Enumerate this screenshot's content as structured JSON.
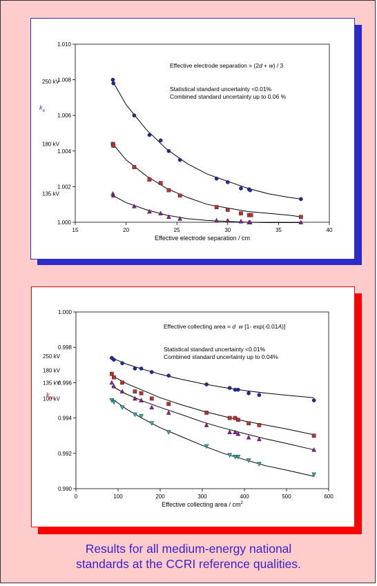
{
  "colors": {
    "background": "#ffcccc",
    "top_accent": "#2b2bcc",
    "bottom_accent": "#ff0000",
    "caption": "#3b22cc",
    "series_250": "#1a2aa0",
    "series_180": "#c03030",
    "series_135": "#8e1e8e",
    "series_100": "#26b0b0"
  },
  "caption": {
    "line1": "Results for all medium-energy national",
    "line2": "standards at the CCRI reference qualities."
  },
  "chart_data": [
    {
      "type": "scatter",
      "title": "",
      "ylabel": "ke",
      "ylabel_main": "k",
      "ylabel_sub": "e",
      "xlabel": "Effective electrode separation / cm",
      "xlim": [
        15,
        40
      ],
      "ylim": [
        1.0,
        1.01
      ],
      "x_ticks": [
        "15",
        "20",
        "25",
        "30",
        "35",
        "40"
      ],
      "x_tick_values": [
        15,
        20,
        25,
        30,
        35,
        40
      ],
      "y_ticks": [
        "1.000",
        "1.002",
        "1.004",
        "1.006",
        "1.008",
        "1.010"
      ],
      "y_tick_values": [
        1.0,
        1.002,
        1.004,
        1.006,
        1.008,
        1.01
      ],
      "annotations": {
        "formula_prefix": "Effective electrode separation = (2",
        "formula_d": "d",
        "formula_mid": " + ",
        "formula_w": "w",
        "formula_suffix": ") / 3",
        "uncert1": "Statistical standard uncertainty <0.01%",
        "uncert2": "Combined standard uncertainty up to 0.06 %"
      },
      "series": [
        {
          "name": "250 kV",
          "marker": "circle",
          "color": "#1a2aa0",
          "x": [
            18.7,
            18.75,
            20.8,
            22.3,
            23.4,
            24.2,
            25.3,
            28.9,
            30.0,
            31.3,
            32.1,
            32.2,
            37.2
          ],
          "y": [
            1.008,
            1.0078,
            1.006,
            1.0049,
            1.0046,
            1.004,
            1.0035,
            1.00245,
            1.00225,
            1.0019,
            1.00185,
            1.0018,
            1.0013
          ],
          "fit_x": [
            18.7,
            20,
            22,
            24,
            26,
            28,
            30,
            32,
            34,
            36,
            37.3
          ],
          "fit_y": [
            1.0079,
            1.0066,
            1.0052,
            1.0041,
            1.0033,
            1.0027,
            1.0023,
            1.0019,
            1.0016,
            1.0014,
            1.0013
          ]
        },
        {
          "name": "180 kV",
          "marker": "square",
          "color": "#c03030",
          "x": [
            18.7,
            18.75,
            20.8,
            22.3,
            23.4,
            24.2,
            25.3,
            28.9,
            30.0,
            31.3,
            32.1,
            32.3,
            37.2
          ],
          "y": [
            1.0044,
            1.0043,
            1.0031,
            1.0024,
            1.0022,
            1.0018,
            1.0015,
            1.00085,
            1.0007,
            1.0005,
            1.0004,
            1.0004,
            1.0003
          ],
          "fit_x": [
            18.7,
            20,
            22,
            24,
            26,
            28,
            30,
            32,
            34,
            36,
            37.3
          ],
          "fit_y": [
            1.0044,
            1.0035,
            1.0026,
            1.0019,
            1.0014,
            1.001,
            1.0008,
            1.0006,
            1.0005,
            1.0004,
            1.0003
          ]
        },
        {
          "name": "135 kV",
          "marker": "triangle",
          "color": "#8e1e8e",
          "x": [
            18.7,
            18.75,
            20.8,
            22.3,
            23.4,
            24.2,
            25.3,
            28.9,
            30.0,
            31.3,
            32.1,
            32.2,
            37.2
          ],
          "y": [
            1.0016,
            1.0015,
            1.0009,
            1.0006,
            1.0005,
            1.0003,
            1.0002,
            1.0001,
            1.0001,
            1.00005,
            1.0,
            1.0,
            1.0
          ],
          "fit_x": [
            18.7,
            20,
            22,
            24,
            26,
            28,
            30,
            32,
            34,
            36,
            37.3
          ],
          "fit_y": [
            1.0015,
            1.0011,
            1.0007,
            1.0004,
            1.0002,
            1.0001,
            1.00005,
            1.0,
            0.99998,
            0.99998,
            0.99998
          ]
        }
      ]
    },
    {
      "type": "scatter",
      "title": "",
      "ylabel": "ksc",
      "ylabel_main": "k",
      "ylabel_sub": "sc",
      "xlabel": "Effective collecting area / cm",
      "xlabel_sup": "2",
      "xlim": [
        0,
        600
      ],
      "ylim": [
        0.99,
        1.0
      ],
      "x_ticks": [
        "0",
        "100",
        "200",
        "300",
        "400",
        "500",
        "600"
      ],
      "x_tick_values": [
        0,
        100,
        200,
        300,
        400,
        500,
        600
      ],
      "y_ticks": [
        "0.990",
        "0.992",
        "0.994",
        "0.996",
        "0.998",
        "1.000"
      ],
      "y_tick_values": [
        0.99,
        0.992,
        0.994,
        0.996,
        0.998,
        1.0
      ],
      "annotations": {
        "formula_prefix": "Effective collecting area = ",
        "formula_d": "d",
        "formula_w": "w",
        "formula_bracket": "  [1- exp(-0.01",
        "formula_A": "A",
        "formula_suffix": ")]",
        "uncert1": "Statistical standard uncertainty <0.01%",
        "uncert2": "Combined standard uncertainty up to 0.04%"
      },
      "series": [
        {
          "name": "250 kV",
          "marker": "circle",
          "color": "#1a2aa0",
          "x": [
            85,
            90,
            110,
            140,
            155,
            180,
            220,
            310,
            365,
            378,
            385,
            410,
            435,
            565
          ],
          "y": [
            0.9974,
            0.9973,
            0.9971,
            0.9968,
            0.9968,
            0.9966,
            0.9964,
            0.9959,
            0.9957,
            0.9956,
            0.9956,
            0.9954,
            0.9953,
            0.995
          ],
          "fit_x": [
            85,
            120,
            160,
            200,
            250,
            300,
            350,
            400,
            450,
            500,
            565
          ],
          "fit_y": [
            0.9974,
            0.99705,
            0.99675,
            0.99648,
            0.99619,
            0.99594,
            0.99573,
            0.99556,
            0.99541,
            0.99529,
            0.99515
          ]
        },
        {
          "name": "180 kV",
          "marker": "square",
          "color": "#c03030",
          "x": [
            85,
            90,
            110,
            140,
            155,
            180,
            220,
            310,
            365,
            378,
            385,
            410,
            435,
            565
          ],
          "y": [
            0.9965,
            0.9963,
            0.996,
            0.9955,
            0.9954,
            0.9951,
            0.9948,
            0.9943,
            0.994,
            0.994,
            0.9939,
            0.9937,
            0.9936,
            0.993
          ],
          "fit_x": [
            85,
            120,
            160,
            200,
            250,
            300,
            350,
            400,
            450,
            500,
            565
          ],
          "fit_y": [
            0.9964,
            0.99595,
            0.99555,
            0.99515,
            0.99475,
            0.9944,
            0.9941,
            0.99383,
            0.9936,
            0.99338,
            0.99305
          ]
        },
        {
          "name": "135 kV",
          "marker": "triangle",
          "color": "#8e1e8e",
          "x": [
            85,
            90,
            110,
            140,
            155,
            180,
            220,
            310,
            365,
            378,
            385,
            410,
            435,
            565
          ],
          "y": [
            0.996,
            0.9958,
            0.9955,
            0.9951,
            0.995,
            0.9946,
            0.9943,
            0.9936,
            0.9932,
            0.9932,
            0.9931,
            0.9929,
            0.9928,
            0.9922
          ],
          "fit_x": [
            85,
            120,
            160,
            200,
            250,
            300,
            350,
            400,
            450,
            500,
            565
          ],
          "fit_y": [
            0.9958,
            0.99535,
            0.99495,
            0.9946,
            0.9942,
            0.99378,
            0.99343,
            0.99312,
            0.99282,
            0.99256,
            0.9922
          ]
        },
        {
          "name": "100 kV",
          "marker": "triangle-down",
          "color": "#26b0b0",
          "x": [
            85,
            90,
            110,
            140,
            155,
            180,
            220,
            310,
            365,
            378,
            385,
            410,
            435,
            565
          ],
          "y": [
            0.995,
            0.9949,
            0.9946,
            0.9942,
            0.9941,
            0.9937,
            0.9932,
            0.9924,
            0.9919,
            0.9918,
            0.9918,
            0.9916,
            0.9914,
            0.9908
          ],
          "fit_x": [
            85,
            120,
            160,
            200,
            250,
            300,
            350,
            400,
            450,
            500,
            565
          ],
          "fit_y": [
            0.9951,
            0.9945,
            0.99395,
            0.99345,
            0.99295,
            0.99245,
            0.992,
            0.99165,
            0.9913,
            0.99105,
            0.9907
          ]
        }
      ]
    }
  ]
}
